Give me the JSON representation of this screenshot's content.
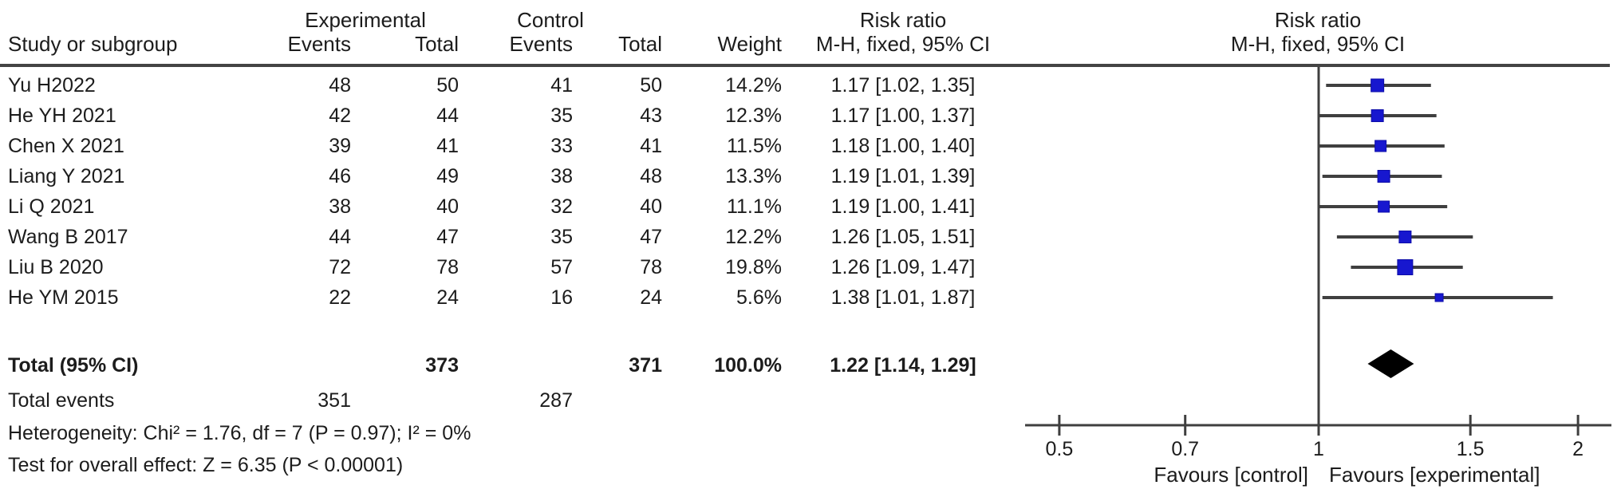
{
  "colors": {
    "text": "#1c1c1c",
    "rule": "#444444",
    "ci_line": "#3f3f3f",
    "square_fill": "#1717cf",
    "square_stroke": "#0d0da8",
    "diamond": "#000000"
  },
  "header": {
    "group_experimental": "Experimental",
    "group_control": "Control",
    "study_col": "Study or subgroup",
    "exp_events_col": "Events",
    "exp_total_col": "Total",
    "ctrl_events_col": "Events",
    "ctrl_total_col": "Total",
    "weight_col": "Weight",
    "rr_col_title": "Risk ratio",
    "rr_col_sub": "M-H, fixed, 95% CI",
    "plot_col_title": "Risk ratio",
    "plot_col_sub": "M-H, fixed, 95% CI"
  },
  "studies": [
    {
      "name": "Yu H2022",
      "exp_events": "48",
      "exp_total": "50",
      "ctrl_events": "41",
      "ctrl_total": "50",
      "weight": "14.2%",
      "rr_text": "1.17 [1.02, 1.35]",
      "rr": 1.17,
      "lo": 1.02,
      "hi": 1.35,
      "w": 14.2
    },
    {
      "name": "He YH 2021",
      "exp_events": "42",
      "exp_total": "44",
      "ctrl_events": "35",
      "ctrl_total": "43",
      "weight": "12.3%",
      "rr_text": "1.17 [1.00, 1.37]",
      "rr": 1.17,
      "lo": 1.0,
      "hi": 1.37,
      "w": 12.3
    },
    {
      "name": "Chen X 2021",
      "exp_events": "39",
      "exp_total": "41",
      "ctrl_events": "33",
      "ctrl_total": "41",
      "weight": "11.5%",
      "rr_text": "1.18 [1.00, 1.40]",
      "rr": 1.18,
      "lo": 1.0,
      "hi": 1.4,
      "w": 11.5
    },
    {
      "name": "Liang Y 2021",
      "exp_events": "46",
      "exp_total": "49",
      "ctrl_events": "38",
      "ctrl_total": "48",
      "weight": "13.3%",
      "rr_text": "1.19 [1.01, 1.39]",
      "rr": 1.19,
      "lo": 1.01,
      "hi": 1.39,
      "w": 13.3
    },
    {
      "name": "Li Q 2021",
      "exp_events": "38",
      "exp_total": "40",
      "ctrl_events": "32",
      "ctrl_total": "40",
      "weight": "11.1%",
      "rr_text": "1.19 [1.00, 1.41]",
      "rr": 1.19,
      "lo": 1.0,
      "hi": 1.41,
      "w": 11.1
    },
    {
      "name": "Wang B 2017",
      "exp_events": "44",
      "exp_total": "47",
      "ctrl_events": "35",
      "ctrl_total": "47",
      "weight": "12.2%",
      "rr_text": "1.26 [1.05, 1.51]",
      "rr": 1.26,
      "lo": 1.05,
      "hi": 1.51,
      "w": 12.2
    },
    {
      "name": "Liu B 2020",
      "exp_events": "72",
      "exp_total": "78",
      "ctrl_events": "57",
      "ctrl_total": "78",
      "weight": "19.8%",
      "rr_text": "1.26 [1.09, 1.47]",
      "rr": 1.26,
      "lo": 1.09,
      "hi": 1.47,
      "w": 19.8
    },
    {
      "name": "He YM 2015",
      "exp_events": "22",
      "exp_total": "24",
      "ctrl_events": "16",
      "ctrl_total": "24",
      "weight": "5.6%",
      "rr_text": "1.38 [1.01, 1.87]",
      "rr": 1.38,
      "lo": 1.01,
      "hi": 1.87,
      "w": 5.6
    }
  ],
  "total_row": {
    "label": "Total (95% CI)",
    "exp_total": "373",
    "ctrl_total": "371",
    "weight": "100.0%",
    "rr_text": "1.22 [1.14, 1.29]",
    "rr": 1.22,
    "lo": 1.14,
    "hi": 1.29
  },
  "total_events_row": {
    "label": "Total events",
    "experimental": "351",
    "control": "287"
  },
  "heterogeneity": "Heterogeneity: Chi² = 1.76, df = 7 (P = 0.97); I² = 0%",
  "overall_effect": "Test for overall effect: Z = 6.35 (P < 0.00001)",
  "axis": {
    "ticks": [
      "0.5",
      "0.7",
      "1",
      "1.5",
      "2"
    ],
    "tick_values": [
      0.5,
      0.7,
      1,
      1.5,
      2
    ],
    "favours_left": "Favours [control]",
    "favours_right": "Favours [experimental]"
  },
  "chart_data": {
    "type": "scatter",
    "subtype": "forest-plot",
    "title": "Risk ratio M-H, fixed, 95% CI",
    "x_scale": "log",
    "x_ticks": [
      0.5,
      0.7,
      1,
      1.5,
      2
    ],
    "x_range": [
      0.45,
      2.2
    ],
    "axis_label_left": "Favours [control]",
    "axis_label_right": "Favours [experimental]",
    "series": [
      {
        "name": "Yu H2022",
        "rr": 1.17,
        "ci_low": 1.02,
        "ci_high": 1.35,
        "weight_pct": 14.2
      },
      {
        "name": "He YH 2021",
        "rr": 1.17,
        "ci_low": 1.0,
        "ci_high": 1.37,
        "weight_pct": 12.3
      },
      {
        "name": "Chen X 2021",
        "rr": 1.18,
        "ci_low": 1.0,
        "ci_high": 1.4,
        "weight_pct": 11.5
      },
      {
        "name": "Liang Y 2021",
        "rr": 1.19,
        "ci_low": 1.01,
        "ci_high": 1.39,
        "weight_pct": 13.3
      },
      {
        "name": "Li Q 2021",
        "rr": 1.19,
        "ci_low": 1.0,
        "ci_high": 1.41,
        "weight_pct": 11.1
      },
      {
        "name": "Wang B 2017",
        "rr": 1.26,
        "ci_low": 1.05,
        "ci_high": 1.51,
        "weight_pct": 12.2
      },
      {
        "name": "Liu B 2020",
        "rr": 1.26,
        "ci_low": 1.09,
        "ci_high": 1.47,
        "weight_pct": 19.8
      },
      {
        "name": "He YM 2015",
        "rr": 1.38,
        "ci_low": 1.01,
        "ci_high": 1.87,
        "weight_pct": 5.6
      }
    ],
    "total": {
      "name": "Total (95% CI)",
      "rr": 1.22,
      "ci_low": 1.14,
      "ci_high": 1.29,
      "weight_pct": 100.0,
      "experimental_total": 373,
      "control_total": 371,
      "experimental_events": 351,
      "control_events": 287
    },
    "heterogeneity": {
      "chi2": 1.76,
      "df": 7,
      "p": 0.97,
      "i2_pct": 0
    },
    "overall_effect": {
      "z": 6.35,
      "p": "< 0.00001"
    }
  }
}
